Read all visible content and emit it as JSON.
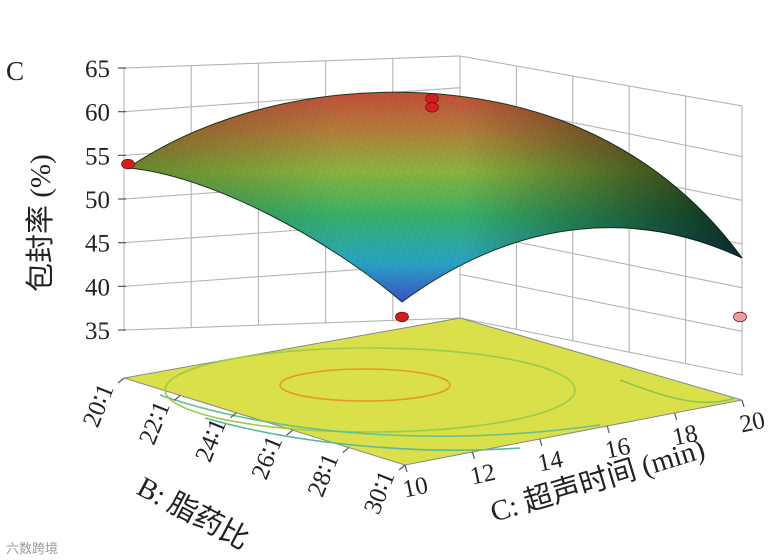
{
  "chart_data": {
    "type": "surface",
    "panel_label": "C",
    "zlabel": "包封率 (%)",
    "zlim": [
      35,
      65
    ],
    "zticks": [
      "35",
      "40",
      "45",
      "50",
      "55",
      "60",
      "65"
    ],
    "x_axis": {
      "label": "C: 超声时间 (min)",
      "ticks": [
        "10",
        "12",
        "14",
        "16",
        "18",
        "20"
      ],
      "range": [
        10,
        20
      ]
    },
    "y_axis": {
      "label": "B: 脂药比",
      "ticks": [
        "20∶1",
        "22∶1",
        "24∶1",
        "26∶1",
        "28∶1",
        "30∶1"
      ],
      "range": [
        20,
        30
      ]
    },
    "surface": {
      "corners": [
        {
          "time": 10,
          "ratio": 30,
          "value": 36
        },
        {
          "time": 10,
          "ratio": 20,
          "value": 53
        },
        {
          "time": 20,
          "ratio": 30,
          "value": 41
        },
        {
          "time": 20,
          "ratio": 20,
          "value": 48
        }
      ],
      "peak": {
        "time": 15,
        "ratio": 24,
        "value": 61
      }
    },
    "design_points": [
      {
        "time": 10,
        "ratio": 20,
        "value": 54
      },
      {
        "time": 15,
        "ratio": 24,
        "value": 61.5
      },
      {
        "time": 15,
        "ratio": 24,
        "value": 60.5
      },
      {
        "time": 10,
        "ratio": 30,
        "value": 36.5
      },
      {
        "time": 20,
        "ratio": 30,
        "value": 40.5
      }
    ],
    "contour_floor": true,
    "grid": true
  },
  "watermark": "六数跨境"
}
